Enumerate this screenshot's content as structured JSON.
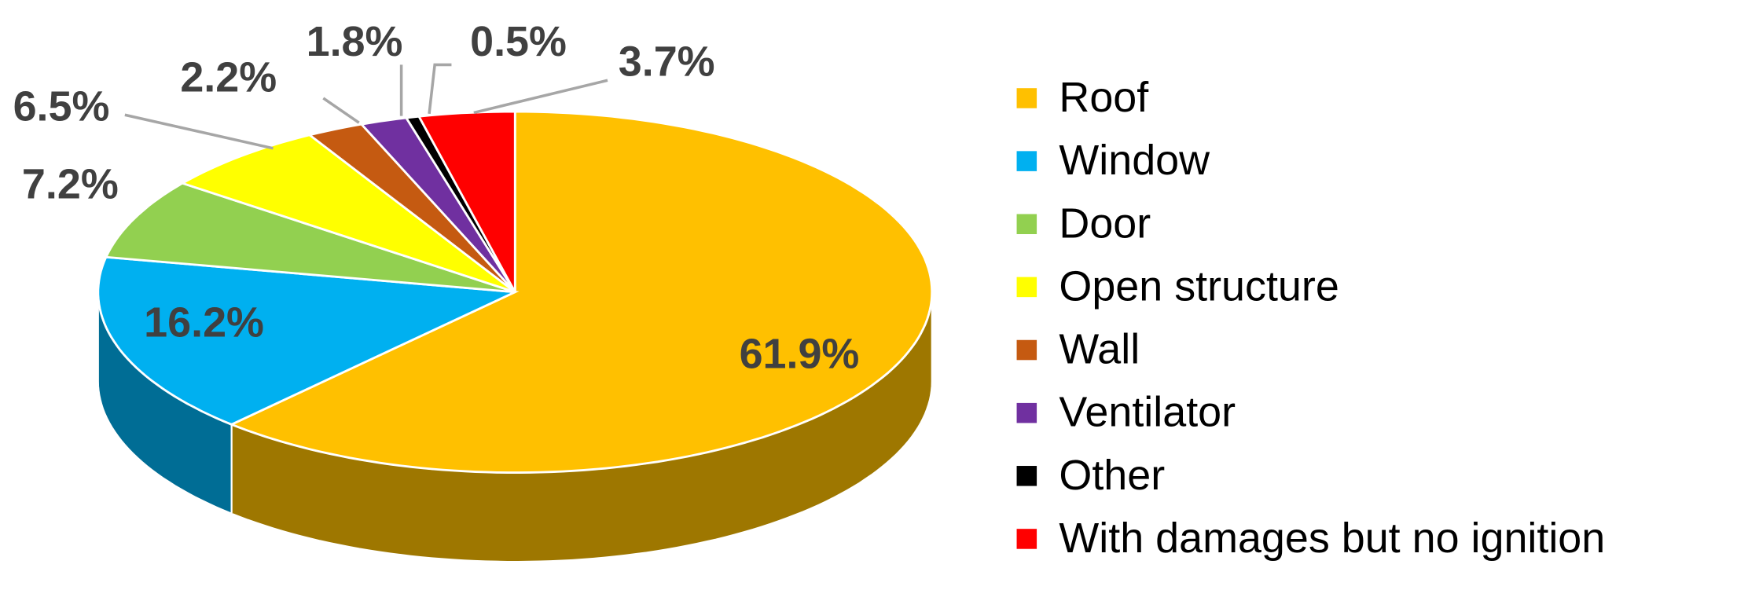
{
  "chart_data": {
    "type": "pie3d",
    "categories": [
      "Roof",
      "Window",
      "Door",
      "Open structure",
      "Wall",
      "Ventilator",
      "Other",
      "With damages but no ignition"
    ],
    "values": [
      61.9,
      16.2,
      7.2,
      6.5,
      2.2,
      1.8,
      0.5,
      3.7
    ],
    "value_labels": [
      "61.9%",
      "16.2%",
      "7.2%",
      "6.5%",
      "2.2%",
      "1.8%",
      "0.5%",
      "3.7%"
    ],
    "colors": [
      "#FFC000",
      "#00B0F0",
      "#92D050",
      "#FFFF00",
      "#C55A11",
      "#7030A0",
      "#000000",
      "#FF0000"
    ],
    "legend": "right"
  }
}
